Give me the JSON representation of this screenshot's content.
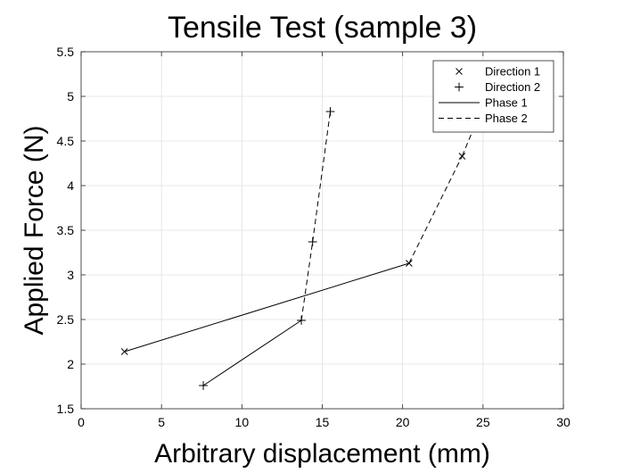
{
  "chart_data": {
    "type": "line",
    "title": "Tensile Test (sample 3)",
    "xlabel": "Arbitrary displacement (mm)",
    "ylabel": "Applied Force (N)",
    "xlim": [
      0,
      30
    ],
    "ylim": [
      1.5,
      5.5
    ],
    "xticks": [
      "0",
      "5",
      "10",
      "15",
      "20",
      "25",
      "30"
    ],
    "yticks": [
      "1.5",
      "2",
      "2.5",
      "3",
      "3.5",
      "4",
      "4.5",
      "5",
      "5.5"
    ],
    "grid": true,
    "legend_position": "top-right",
    "legend": [
      "Direction 1",
      "Direction 2",
      "Phase 1",
      "Phase 2"
    ],
    "series": [
      {
        "name": "Direction 1",
        "marker": "x",
        "points": [
          {
            "x": 2.7,
            "y": 2.14,
            "phase": 1
          },
          {
            "x": 20.4,
            "y": 3.13,
            "phase": 1
          },
          {
            "x": 23.7,
            "y": 4.33,
            "phase": 2
          },
          {
            "x": 24.9,
            "y": 4.85,
            "phase": 2
          }
        ]
      },
      {
        "name": "Direction 2",
        "marker": "+",
        "points": [
          {
            "x": 7.6,
            "y": 1.76,
            "phase": 1
          },
          {
            "x": 13.7,
            "y": 2.49,
            "phase": 1
          },
          {
            "x": 14.4,
            "y": 3.37,
            "phase": 2
          },
          {
            "x": 15.5,
            "y": 4.83,
            "phase": 2
          }
        ]
      }
    ]
  }
}
